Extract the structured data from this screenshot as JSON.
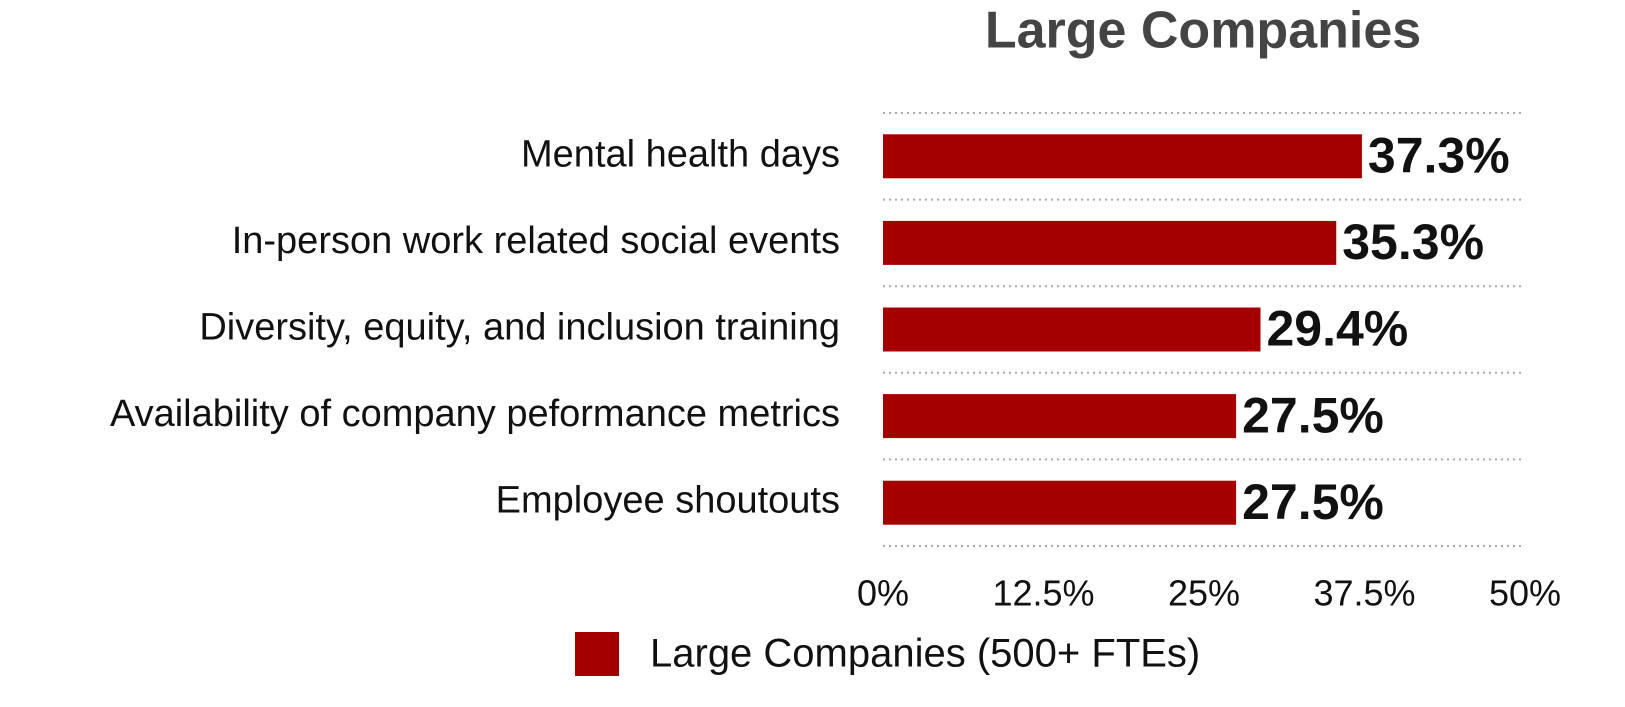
{
  "chart_data": {
    "type": "bar",
    "orientation": "horizontal",
    "title": "Large Companies",
    "categories": [
      "Mental health days",
      "In-person work related social events",
      "Diversity, equity, and inclusion training",
      "Availability of company peformance metrics",
      "Employee shoutouts"
    ],
    "series": [
      {
        "name": "Large Companies (500+ FTEs)",
        "color": "#a50000",
        "values": [
          37.3,
          35.3,
          29.4,
          27.5,
          27.5
        ],
        "value_labels": [
          "37.3%",
          "35.3%",
          "29.4%",
          "27.5%",
          "27.5%"
        ]
      }
    ],
    "xlim": [
      0,
      50
    ],
    "xticks": [
      {
        "value": 0,
        "label": "0%"
      },
      {
        "value": 12.5,
        "label": "12.5%"
      },
      {
        "value": 25,
        "label": "25%"
      },
      {
        "value": 37.5,
        "label": "37.5%"
      },
      {
        "value": 50,
        "label": "50%"
      }
    ],
    "legend": "bottom"
  }
}
